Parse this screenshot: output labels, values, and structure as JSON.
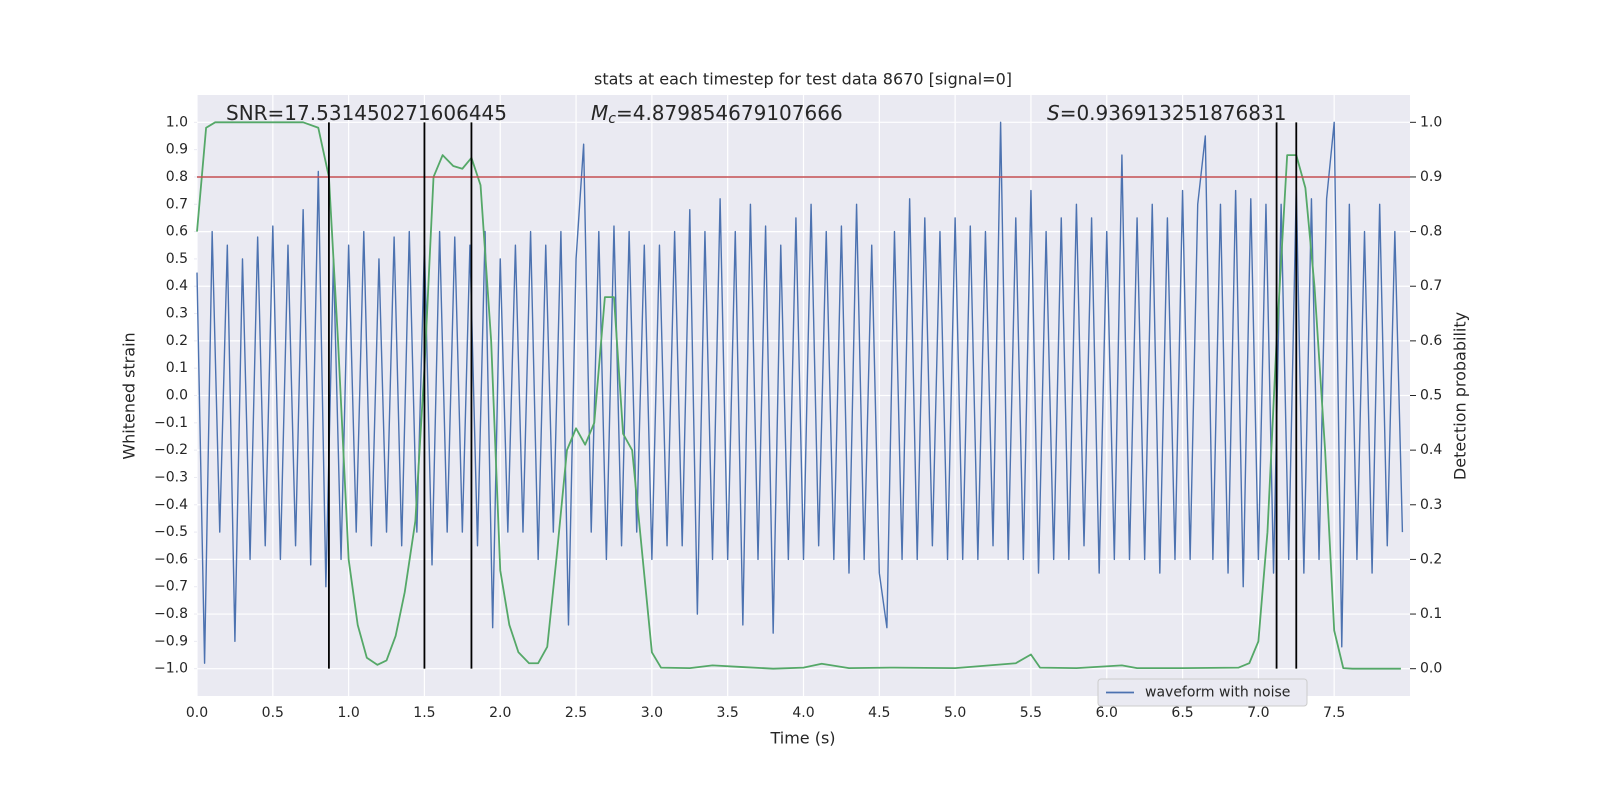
{
  "chart_data": {
    "type": "line",
    "title": "stats at each timestep for test data 8670 [signal=0]",
    "x_label": "Time (s)",
    "y_label": "Whitened strain",
    "y2_label": "Detection probability",
    "annotations": [
      {
        "parts": [
          {
            "text": "SNR=17.531450271606445"
          }
        ]
      },
      {
        "parts": [
          {
            "text": "M",
            "italic": true
          },
          {
            "text": "c",
            "italic": true,
            "sub": true
          },
          {
            "text": "=4.879854679107666"
          }
        ]
      },
      {
        "parts": [
          {
            "text": "S",
            "italic": true
          },
          {
            "text": "=0.936913251876831"
          }
        ]
      }
    ],
    "xlim": [
      0,
      8
    ],
    "ylim": [
      -1.1,
      1.1
    ],
    "y2lim": [
      -0.05,
      1.05
    ],
    "xticks": [
      {
        "value": 0,
        "label": "0.0"
      },
      0.5,
      {
        "value": 1,
        "label": "1.0"
      },
      1.5,
      {
        "value": 2,
        "label": "2.0"
      },
      2.5,
      {
        "value": 3,
        "label": "3.0"
      },
      3.5,
      {
        "value": 4,
        "label": "4.0"
      },
      4.5,
      {
        "value": 5,
        "label": "5.0"
      },
      5.5,
      {
        "value": 6,
        "label": "6.0"
      },
      6.5,
      {
        "value": 7,
        "label": "7.0"
      },
      7.5
    ],
    "yticks": [
      {
        "value": -1,
        "label": "−1.0"
      },
      {
        "value": -0.9,
        "label": "−0.9"
      },
      {
        "value": -0.8,
        "label": "−0.8"
      },
      {
        "value": -0.7,
        "label": "−0.7"
      },
      {
        "value": -0.6,
        "label": "−0.6"
      },
      {
        "value": -0.5,
        "label": "−0.5"
      },
      {
        "value": -0.4,
        "label": "−0.4"
      },
      {
        "value": -0.3,
        "label": "−0.3"
      },
      {
        "value": -0.2,
        "label": "−0.2"
      },
      {
        "value": -0.1,
        "label": "−0.1"
      },
      {
        "value": 0,
        "label": "0.0"
      },
      0.1,
      0.2,
      0.3,
      0.4,
      0.5,
      0.6,
      0.7,
      0.8,
      0.9,
      {
        "value": 1,
        "label": "1.0"
      }
    ],
    "y2ticks": [
      {
        "value": 0,
        "label": "0.0"
      },
      0.1,
      0.2,
      0.3,
      0.4,
      0.5,
      0.6,
      0.7,
      0.8,
      0.9,
      {
        "value": 1,
        "label": "1.0"
      }
    ],
    "grid": true,
    "legend": "best",
    "threshold": {
      "value": 0.9,
      "axis": "y2",
      "color": "#c44e52"
    },
    "vlines": {
      "x": [
        0.87,
        1.5,
        1.81,
        7.12,
        7.25
      ],
      "ymin": -1,
      "ymax": 1,
      "color": "#000000"
    },
    "series": [
      {
        "name": "waveform with noise",
        "color": "#4c72b0",
        "x": [
          0,
          0.05,
          0.1,
          0.15,
          0.2,
          0.25,
          0.3,
          0.35,
          0.4,
          0.45,
          0.5,
          0.55,
          0.6,
          0.65,
          0.7,
          0.75,
          0.8,
          0.85,
          0.9,
          0.95,
          1,
          1.05,
          1.1,
          1.15,
          1.2,
          1.25,
          1.3,
          1.35,
          1.4,
          1.45,
          1.5,
          1.55,
          1.6,
          1.65,
          1.7,
          1.75,
          1.8,
          1.85,
          1.9,
          1.95,
          2,
          2.05,
          2.1,
          2.15,
          2.2,
          2.25,
          2.3,
          2.35,
          2.4,
          2.45,
          2.5,
          2.55,
          2.6,
          2.65,
          2.7,
          2.75,
          2.8,
          2.85,
          2.9,
          2.95,
          3,
          3.05,
          3.1,
          3.15,
          3.2,
          3.25,
          3.3,
          3.35,
          3.4,
          3.45,
          3.5,
          3.55,
          3.6,
          3.65,
          3.7,
          3.75,
          3.8,
          3.85,
          3.9,
          3.95,
          4,
          4.05,
          4.1,
          4.15,
          4.2,
          4.25,
          4.3,
          4.35,
          4.4,
          4.45,
          4.5,
          4.55,
          4.6,
          4.65,
          4.7,
          4.75,
          4.8,
          4.85,
          4.9,
          4.95,
          5,
          5.05,
          5.1,
          5.15,
          5.2,
          5.25,
          5.3,
          5.35,
          5.4,
          5.45,
          5.5,
          5.55,
          5.6,
          5.65,
          5.7,
          5.75,
          5.8,
          5.85,
          5.9,
          5.95,
          6,
          6.05,
          6.1,
          6.15,
          6.2,
          6.25,
          6.3,
          6.35,
          6.4,
          6.45,
          6.5,
          6.55,
          6.6,
          6.65,
          6.7,
          6.75,
          6.8,
          6.85,
          6.9,
          6.95,
          7,
          7.05,
          7.1,
          7.15,
          7.2,
          7.25,
          7.3,
          7.35,
          7.4,
          7.45,
          7.5,
          7.55,
          7.6,
          7.65,
          7.7,
          7.75,
          7.8,
          7.85,
          7.9,
          7.95
        ],
        "values": [
          0.45,
          -0.98,
          0.6,
          -0.5,
          0.55,
          -0.9,
          0.5,
          -0.6,
          0.58,
          -0.55,
          0.62,
          -0.6,
          0.55,
          -0.55,
          0.68,
          -0.62,
          0.82,
          -0.7,
          0.5,
          -0.6,
          0.55,
          -0.5,
          0.6,
          -0.55,
          0.5,
          -0.5,
          0.58,
          -0.55,
          0.6,
          -0.5,
          0.55,
          -0.62,
          0.6,
          -0.5,
          0.58,
          -0.5,
          0.55,
          -0.55,
          0.6,
          -0.85,
          0.5,
          -0.5,
          0.55,
          -0.5,
          0.6,
          -0.6,
          0.55,
          -0.5,
          0.6,
          -0.84,
          0.5,
          0.92,
          -0.5,
          0.6,
          -0.6,
          0.62,
          -0.55,
          0.6,
          -0.5,
          0.55,
          -0.6,
          0.55,
          -0.55,
          0.6,
          -0.55,
          0.68,
          -0.8,
          0.6,
          -0.6,
          0.72,
          -0.6,
          0.6,
          -0.84,
          0.7,
          -0.6,
          0.62,
          -0.87,
          0.55,
          -0.6,
          0.65,
          -0.6,
          0.7,
          -0.55,
          0.6,
          -0.6,
          0.62,
          -0.65,
          0.7,
          -0.6,
          0.55,
          -0.65,
          -0.85,
          0.6,
          -0.6,
          0.72,
          -0.6,
          0.65,
          -0.55,
          0.6,
          -0.6,
          0.65,
          -0.6,
          0.62,
          -0.6,
          0.6,
          -0.55,
          1.0,
          -0.6,
          0.65,
          -0.6,
          0.75,
          -0.65,
          0.6,
          -0.6,
          0.65,
          -0.6,
          0.7,
          -0.55,
          0.65,
          -0.65,
          0.6,
          -0.6,
          0.88,
          -0.6,
          0.65,
          -0.6,
          0.7,
          -0.65,
          0.65,
          -0.6,
          0.75,
          -0.6,
          0.7,
          0.95,
          -0.6,
          0.7,
          -0.65,
          0.75,
          -0.7,
          0.72,
          -0.6,
          0.7,
          -0.65,
          0.7,
          -0.6,
          0.76,
          -0.65,
          0.72,
          -0.6,
          0.72,
          1.0,
          -0.92,
          0.7,
          -0.6,
          0.6,
          -0.65,
          0.7,
          -0.55,
          0.6,
          -0.5
        ]
      },
      {
        "color": "#55a868",
        "axis": "y2",
        "x": [
          0,
          0.06,
          0.12,
          0.25,
          0.5,
          0.7,
          0.8,
          0.87,
          0.93,
          1.0,
          1.06,
          1.12,
          1.19,
          1.25,
          1.31,
          1.37,
          1.44,
          1.5,
          1.56,
          1.62,
          1.69,
          1.75,
          1.81,
          1.87,
          1.94,
          2.0,
          2.06,
          2.12,
          2.19,
          2.25,
          2.31,
          2.37,
          2.44,
          2.5,
          2.56,
          2.62,
          2.69,
          2.75,
          2.81,
          2.87,
          2.94,
          3.0,
          3.06,
          3.25,
          3.4,
          3.6,
          3.8,
          4.0,
          4.12,
          4.3,
          4.6,
          5.0,
          5.4,
          5.5,
          5.56,
          5.8,
          6.1,
          6.2,
          6.5,
          6.87,
          6.94,
          7.0,
          7.06,
          7.12,
          7.19,
          7.25,
          7.31,
          7.37,
          7.44,
          7.5,
          7.56,
          7.62,
          7.94
        ],
        "values": [
          0.8,
          0.99,
          1.0,
          1.0,
          1.0,
          1.0,
          0.99,
          0.9,
          0.6,
          0.2,
          0.08,
          0.02,
          0.007,
          0.015,
          0.06,
          0.14,
          0.27,
          0.55,
          0.9,
          0.94,
          0.92,
          0.915,
          0.935,
          0.885,
          0.6,
          0.18,
          0.08,
          0.03,
          0.01,
          0.01,
          0.04,
          0.2,
          0.4,
          0.44,
          0.41,
          0.45,
          0.68,
          0.68,
          0.43,
          0.4,
          0.2,
          0.03,
          0.002,
          0.001,
          0.006,
          0.003,
          0.0,
          0.002,
          0.009,
          0.001,
          0.002,
          0.001,
          0.01,
          0.026,
          0.002,
          0.001,
          0.006,
          0.001,
          0.001,
          0.002,
          0.01,
          0.05,
          0.25,
          0.6,
          0.94,
          0.94,
          0.88,
          0.7,
          0.4,
          0.07,
          0.001,
          0.0,
          0.0
        ]
      }
    ]
  }
}
